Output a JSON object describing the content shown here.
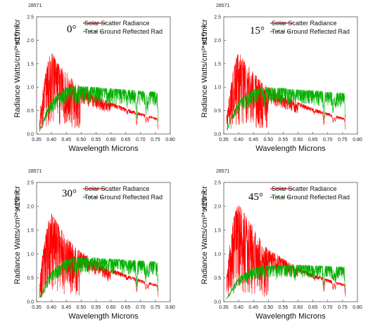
{
  "chart_data": [
    {
      "type": "line",
      "panel_tag": "28571",
      "angle_label": "0°",
      "xlabel": "Wavelength Microns",
      "ylabel": "Radiance Watts/cm²*str*micr",
      "yscale_label": "×10⁻²",
      "xlim": [
        0.35,
        0.8
      ],
      "ylim": [
        0,
        2.5
      ],
      "x_ticks": [
        "0.35",
        "0.40",
        "0.45",
        "0.50",
        "0.55",
        "0.60",
        "0.65",
        "0.70",
        "0.75",
        "0.80"
      ],
      "y_ticks": [
        "0.0",
        "0.5",
        "1.0",
        "1.5",
        "2.0",
        "2.5"
      ],
      "series": [
        {
          "name": "Solar Scatter Radiance",
          "color": "#ff0000",
          "x": [
            0.36,
            0.37,
            0.38,
            0.39,
            0.4,
            0.42,
            0.44,
            0.46,
            0.48,
            0.5,
            0.55,
            0.6,
            0.65,
            0.7,
            0.75,
            0.76
          ],
          "y": [
            0.4,
            0.9,
            1.3,
            1.6,
            1.75,
            1.55,
            1.4,
            1.25,
            1.1,
            1.0,
            0.83,
            0.68,
            0.55,
            0.45,
            0.35,
            0.33
          ]
        },
        {
          "name": "Total Ground Reflected Rad",
          "color": "#00b000",
          "x": [
            0.36,
            0.37,
            0.38,
            0.39,
            0.4,
            0.42,
            0.44,
            0.46,
            0.48,
            0.5,
            0.55,
            0.6,
            0.65,
            0.7,
            0.75,
            0.76
          ],
          "y": [
            0.1,
            0.25,
            0.45,
            0.6,
            0.7,
            0.85,
            0.95,
            1.0,
            1.02,
            1.02,
            1.0,
            0.97,
            0.95,
            0.92,
            0.9,
            0.88
          ]
        }
      ]
    },
    {
      "type": "line",
      "panel_tag": "28571",
      "angle_label": "15°",
      "xlabel": "Wavelength Microns",
      "ylabel": "Radiance Watts/cm²*str*micr",
      "yscale_label": "×10⁻²",
      "xlim": [
        0.35,
        0.8
      ],
      "ylim": [
        0,
        2.5
      ],
      "x_ticks": [
        "0.35",
        "0.40",
        "0.45",
        "0.50",
        "0.55",
        "0.60",
        "0.65",
        "0.70",
        "0.75",
        "0.80"
      ],
      "y_ticks": [
        "0.0",
        "0.5",
        "1.0",
        "1.5",
        "2.0",
        "2.5"
      ],
      "series": [
        {
          "name": "Solar Scatter Radiance",
          "color": "#ff0000",
          "x": [
            0.36,
            0.37,
            0.38,
            0.39,
            0.4,
            0.42,
            0.44,
            0.46,
            0.48,
            0.5,
            0.55,
            0.6,
            0.65,
            0.7,
            0.75,
            0.76
          ],
          "y": [
            0.4,
            0.9,
            1.3,
            1.6,
            1.75,
            1.55,
            1.4,
            1.25,
            1.1,
            1.0,
            0.83,
            0.68,
            0.55,
            0.45,
            0.35,
            0.33
          ]
        },
        {
          "name": "Total Ground Reflected Rad",
          "color": "#00b000",
          "x": [
            0.36,
            0.37,
            0.38,
            0.39,
            0.4,
            0.42,
            0.44,
            0.46,
            0.48,
            0.5,
            0.55,
            0.6,
            0.65,
            0.7,
            0.75,
            0.76
          ],
          "y": [
            0.1,
            0.25,
            0.42,
            0.57,
            0.68,
            0.82,
            0.92,
            0.97,
            0.99,
            1.0,
            0.98,
            0.95,
            0.93,
            0.9,
            0.88,
            0.86
          ]
        }
      ]
    },
    {
      "type": "line",
      "panel_tag": "28571",
      "angle_label": "30°",
      "xlabel": "Wavelength Microns",
      "ylabel": "Radiance Watts/cm²*str*micr",
      "yscale_label": "×10⁻²",
      "xlim": [
        0.35,
        0.8
      ],
      "ylim": [
        0,
        2.5
      ],
      "x_ticks": [
        "0.35",
        "0.40",
        "0.45",
        "0.50",
        "0.55",
        "0.60",
        "0.65",
        "0.70",
        "0.75",
        "0.80"
      ],
      "y_ticks": [
        "0.0",
        "0.5",
        "1.0",
        "1.5",
        "2.0",
        "2.5"
      ],
      "series": [
        {
          "name": "Solar Scatter Radiance",
          "color": "#ff0000",
          "x": [
            0.36,
            0.37,
            0.38,
            0.39,
            0.4,
            0.42,
            0.44,
            0.46,
            0.48,
            0.5,
            0.55,
            0.6,
            0.65,
            0.7,
            0.75,
            0.76
          ],
          "y": [
            0.45,
            1.0,
            1.4,
            1.7,
            1.85,
            1.65,
            1.45,
            1.3,
            1.15,
            1.05,
            0.85,
            0.7,
            0.57,
            0.46,
            0.37,
            0.35
          ]
        },
        {
          "name": "Total Ground Reflected Rad",
          "color": "#00b000",
          "x": [
            0.36,
            0.37,
            0.38,
            0.39,
            0.4,
            0.42,
            0.44,
            0.46,
            0.48,
            0.5,
            0.55,
            0.6,
            0.65,
            0.7,
            0.75,
            0.76
          ],
          "y": [
            0.1,
            0.22,
            0.38,
            0.52,
            0.62,
            0.75,
            0.85,
            0.9,
            0.92,
            0.93,
            0.92,
            0.9,
            0.88,
            0.86,
            0.84,
            0.82
          ]
        }
      ]
    },
    {
      "type": "line",
      "panel_tag": "28571",
      "angle_label": "45°",
      "xlabel": "Wavelength Microns",
      "ylabel": "Radiance Watts/cm²*str*micr",
      "yscale_label": "×10⁻²",
      "xlim": [
        0.35,
        0.8
      ],
      "ylim": [
        0,
        2.5
      ],
      "x_ticks": [
        "0.35",
        "0.40",
        "0.45",
        "0.50",
        "0.55",
        "0.60",
        "0.65",
        "0.70",
        "0.75",
        "0.80"
      ],
      "y_ticks": [
        "0.0",
        "0.5",
        "1.0",
        "1.5",
        "2.0",
        "2.5"
      ],
      "series": [
        {
          "name": "Solar Scatter Radiance",
          "color": "#ff0000",
          "x": [
            0.36,
            0.37,
            0.38,
            0.39,
            0.4,
            0.42,
            0.44,
            0.46,
            0.48,
            0.5,
            0.55,
            0.6,
            0.65,
            0.7,
            0.75,
            0.76
          ],
          "y": [
            0.55,
            1.2,
            1.65,
            1.95,
            2.05,
            1.85,
            1.65,
            1.45,
            1.25,
            1.1,
            0.9,
            0.72,
            0.58,
            0.47,
            0.38,
            0.36
          ]
        },
        {
          "name": "Total Ground Reflected Rad",
          "color": "#00b000",
          "x": [
            0.36,
            0.37,
            0.38,
            0.39,
            0.4,
            0.42,
            0.44,
            0.46,
            0.48,
            0.5,
            0.55,
            0.6,
            0.65,
            0.7,
            0.75,
            0.76
          ],
          "y": [
            0.08,
            0.18,
            0.3,
            0.42,
            0.5,
            0.6,
            0.68,
            0.72,
            0.75,
            0.76,
            0.77,
            0.77,
            0.76,
            0.75,
            0.73,
            0.72
          ]
        }
      ]
    }
  ]
}
